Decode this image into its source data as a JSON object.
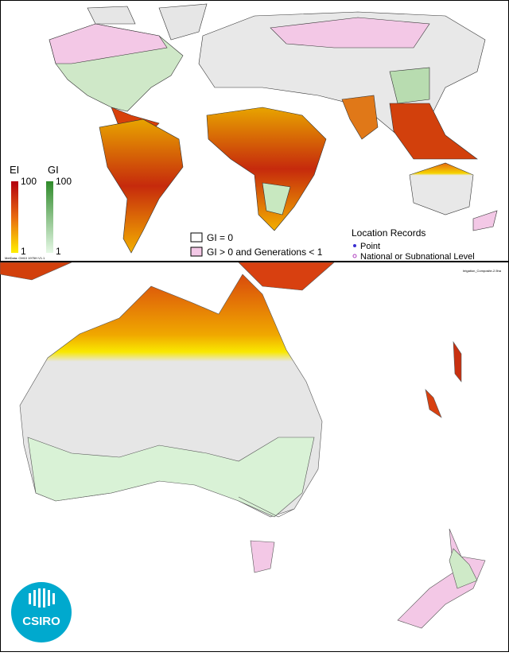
{
  "world_map": {
    "legend_ei": {
      "title": "EI",
      "max": 100,
      "min": 1
    },
    "legend_gi": {
      "title": "GI",
      "max": 100,
      "min": 1
    },
    "categories": [
      "GI = 0",
      "GI > 0 and Generations < 1"
    ],
    "location_records": {
      "title": "Location Records",
      "items": [
        "Point",
        "National or Subnational Level"
      ]
    },
    "metadata": "MetData: CM10 1975H V1.1"
  },
  "australia_map": {
    "file_label": "Irrigation_Composite-2.5ha"
  },
  "logo": {
    "text": "CSIRO"
  }
}
